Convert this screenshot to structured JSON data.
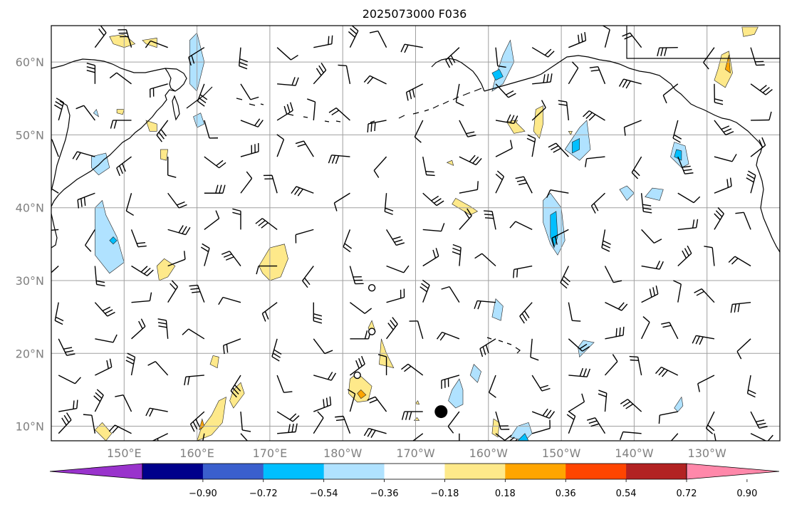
{
  "title": "2025073000 F036",
  "lat_ticks": [
    {
      "lat": 60,
      "label": "60°N"
    },
    {
      "lat": 50,
      "label": "50°N"
    },
    {
      "lat": 40,
      "label": "40°N"
    },
    {
      "lat": 30,
      "label": "30°N"
    },
    {
      "lat": 20,
      "label": "20°N"
    },
    {
      "lat": 10,
      "label": "10°N"
    }
  ],
  "lon_ticks": [
    {
      "lon": 150,
      "label": "150°E"
    },
    {
      "lon": 160,
      "label": "160°E"
    },
    {
      "lon": 170,
      "label": "170°E"
    },
    {
      "lon": 180,
      "label": "180°W"
    },
    {
      "lon": 190,
      "label": "170°W"
    },
    {
      "lon": 200,
      "label": "160°W"
    },
    {
      "lon": 210,
      "label": "150°W"
    },
    {
      "lon": 220,
      "label": "140°W"
    },
    {
      "lon": 230,
      "label": "130°W"
    }
  ],
  "colorbar": {
    "colors": [
      "#9933cc",
      "#00008b",
      "#3a5fcd",
      "#00bfff",
      "#b0e2ff",
      "#ffffff",
      "#fee98a",
      "#ffa500",
      "#ff4500",
      "#b22222",
      "#ff88aa"
    ],
    "tick_labels": [
      "−0.90",
      "−0.72",
      "−0.54",
      "−0.36",
      "−0.18",
      "0.18",
      "0.36",
      "0.54",
      "0.72",
      "0.90"
    ]
  },
  "marker": {
    "lon": 193.5,
    "lat": 12
  },
  "calm_points": [
    {
      "lon": 184,
      "lat": 29
    },
    {
      "lon": 184,
      "lat": 23
    },
    {
      "lon": 182,
      "lat": 17
    }
  ],
  "contour_regions": [
    {
      "color": "#b0e2ff",
      "points": [
        [
          159,
          57
        ],
        [
          159,
          63
        ],
        [
          160,
          64
        ],
        [
          161,
          60
        ],
        [
          160,
          56
        ]
      ]
    },
    {
      "color": "#b0e2ff",
      "points": [
        [
          159.5,
          52.5
        ],
        [
          160.5,
          53
        ],
        [
          161,
          51.5
        ],
        [
          160,
          51
        ]
      ]
    },
    {
      "color": "#b0e2ff",
      "points": [
        [
          145.5,
          47
        ],
        [
          147.5,
          47.5
        ],
        [
          148,
          45.5
        ],
        [
          146.5,
          44.5
        ],
        [
          145.5,
          45.5
        ]
      ]
    },
    {
      "color": "#b0e2ff",
      "points": [
        [
          146,
          40
        ],
        [
          146,
          33.5
        ],
        [
          148,
          31
        ],
        [
          150,
          32.5
        ],
        [
          149,
          36
        ],
        [
          147.5,
          39
        ],
        [
          147,
          41
        ]
      ]
    },
    {
      "color": "#00bfff",
      "points": [
        [
          148,
          35.5
        ],
        [
          148.5,
          35
        ],
        [
          149,
          35.5
        ],
        [
          148.5,
          36
        ]
      ]
    },
    {
      "color": "#b0e2ff",
      "points": [
        [
          201,
          58
        ],
        [
          202,
          61
        ],
        [
          203,
          63
        ],
        [
          203.5,
          60
        ],
        [
          202,
          57
        ],
        [
          200.5,
          56
        ]
      ]
    },
    {
      "color": "#00bfff",
      "points": [
        [
          200.5,
          58.5
        ],
        [
          201.5,
          59
        ],
        [
          202,
          58
        ],
        [
          201,
          57.5
        ]
      ]
    },
    {
      "color": "#b0e2ff",
      "points": [
        [
          210.5,
          48
        ],
        [
          212.5,
          46.5
        ],
        [
          214,
          48
        ],
        [
          213.5,
          52
        ],
        [
          212.5,
          51
        ]
      ]
    },
    {
      "color": "#00bfff",
      "points": [
        [
          211.5,
          47.5
        ],
        [
          212.5,
          48
        ],
        [
          212.5,
          49.5
        ],
        [
          211.5,
          49
        ]
      ]
    },
    {
      "color": "#b0e2ff",
      "points": [
        [
          207.5,
          41
        ],
        [
          208.5,
          42
        ],
        [
          210,
          40
        ],
        [
          210.5,
          35.5
        ],
        [
          209.5,
          33.5
        ],
        [
          208.5,
          35
        ],
        [
          207.5,
          38
        ]
      ]
    },
    {
      "color": "#00bfff",
      "points": [
        [
          208.5,
          39
        ],
        [
          209.3,
          39.5
        ],
        [
          209.5,
          36
        ],
        [
          209,
          34.5
        ],
        [
          208.5,
          36
        ]
      ]
    },
    {
      "color": "#b0e2ff",
      "points": [
        [
          225,
          47
        ],
        [
          226.5,
          45.5
        ],
        [
          227.5,
          46
        ],
        [
          227,
          48.5
        ],
        [
          225.5,
          49
        ]
      ]
    },
    {
      "color": "#00bfff",
      "points": [
        [
          225.5,
          47
        ],
        [
          226.5,
          46.5
        ],
        [
          226.5,
          47.8
        ],
        [
          225.8,
          48
        ]
      ]
    },
    {
      "color": "#b0e2ff",
      "points": [
        [
          200.5,
          25
        ],
        [
          201.7,
          24.5
        ],
        [
          202,
          26.5
        ],
        [
          201,
          27.5
        ]
      ]
    },
    {
      "color": "#b0e2ff",
      "points": [
        [
          212.5,
          19.5
        ],
        [
          213.5,
          20.5
        ],
        [
          214.5,
          21.5
        ],
        [
          213,
          21.8
        ],
        [
          212.3,
          20.8
        ]
      ]
    },
    {
      "color": "#b0e2ff",
      "points": [
        [
          195.5,
          12.5
        ],
        [
          196.5,
          13
        ],
        [
          196.5,
          15
        ],
        [
          196,
          16.5
        ],
        [
          195,
          15
        ],
        [
          194.5,
          13.5
        ]
      ]
    },
    {
      "color": "#b0e2ff",
      "points": [
        [
          197.5,
          17
        ],
        [
          198.5,
          16
        ],
        [
          199,
          17.5
        ],
        [
          198,
          18.5
        ]
      ]
    },
    {
      "color": "#b0e2ff",
      "points": [
        [
          203,
          8.5
        ],
        [
          204,
          10
        ],
        [
          205.5,
          10.5
        ],
        [
          206,
          9
        ],
        [
          205,
          8
        ]
      ]
    },
    {
      "color": "#00bfff",
      "points": [
        [
          204,
          8
        ],
        [
          205,
          9
        ],
        [
          205.5,
          8
        ]
      ]
    },
    {
      "color": "#b0e2ff",
      "points": [
        [
          225.5,
          12.5
        ],
        [
          226.5,
          14
        ],
        [
          226.7,
          12.8
        ],
        [
          226,
          12
        ]
      ]
    },
    {
      "color": "#b0e2ff",
      "points": [
        [
          218,
          42.5
        ],
        [
          219,
          41
        ],
        [
          220,
          42
        ],
        [
          219,
          43
        ]
      ]
    },
    {
      "color": "#b0e2ff",
      "points": [
        [
          221.5,
          41.5
        ],
        [
          223.5,
          41
        ],
        [
          224,
          42.5
        ],
        [
          222.5,
          42.7
        ]
      ]
    },
    {
      "color": "#b0e2ff",
      "points": [
        [
          145.8,
          53
        ],
        [
          146.5,
          52.5
        ],
        [
          146.2,
          53.5
        ]
      ]
    },
    {
      "color": "#fee98a",
      "points": [
        [
          148,
          63.5
        ],
        [
          150,
          63.8
        ],
        [
          151.5,
          62.5
        ],
        [
          150,
          62
        ],
        [
          148.5,
          62.5
        ]
      ]
    },
    {
      "color": "#fee98a",
      "points": [
        [
          152.5,
          63
        ],
        [
          154.5,
          63.3
        ],
        [
          154.5,
          62
        ],
        [
          153,
          62.5
        ]
      ]
    },
    {
      "color": "#fee98a",
      "points": [
        [
          153,
          52
        ],
        [
          154.5,
          51.5
        ],
        [
          154.5,
          50.5
        ],
        [
          153.5,
          50.5
        ]
      ]
    },
    {
      "color": "#fee98a",
      "points": [
        [
          155,
          48
        ],
        [
          156,
          48
        ],
        [
          155.8,
          46.5
        ],
        [
          155,
          46.7
        ]
      ]
    },
    {
      "color": "#fee98a",
      "points": [
        [
          149,
          53.5
        ],
        [
          150,
          53.5
        ],
        [
          149.8,
          52.8
        ],
        [
          149,
          53
        ]
      ]
    },
    {
      "color": "#fee98a",
      "points": [
        [
          154.5,
          32
        ],
        [
          155.5,
          33
        ],
        [
          157,
          32
        ],
        [
          156,
          30.5
        ],
        [
          154.8,
          30
        ]
      ]
    },
    {
      "color": "#fee98a",
      "points": [
        [
          168.5,
          32
        ],
        [
          170,
          34.5
        ],
        [
          172,
          35
        ],
        [
          172.5,
          33
        ],
        [
          171.5,
          30.5
        ],
        [
          170,
          30
        ],
        [
          169,
          31
        ]
      ]
    },
    {
      "color": "#fee98a",
      "points": [
        [
          231.5,
          59
        ],
        [
          232,
          61
        ],
        [
          233,
          61.5
        ],
        [
          233.5,
          58.5
        ],
        [
          232.5,
          56.5
        ],
        [
          231,
          57.5
        ]
      ]
    },
    {
      "color": "#ffa500",
      "points": [
        [
          232.5,
          59
        ],
        [
          233,
          61
        ],
        [
          233.2,
          58.5
        ]
      ]
    },
    {
      "color": "#fee98a",
      "points": [
        [
          235,
          63.5
        ],
        [
          236.5,
          63.8
        ],
        [
          237,
          64.8
        ],
        [
          234.8,
          64.8
        ]
      ]
    },
    {
      "color": "#fee98a",
      "points": [
        [
          206.5,
          53.5
        ],
        [
          207.5,
          54
        ],
        [
          207.5,
          51.5
        ],
        [
          207,
          49.5
        ],
        [
          206.2,
          50.5
        ]
      ]
    },
    {
      "color": "#fee98a",
      "points": [
        [
          202.5,
          51.8
        ],
        [
          203.5,
          52
        ],
        [
          205,
          50.5
        ],
        [
          203.5,
          50.2
        ]
      ]
    },
    {
      "color": "#fee98a",
      "points": [
        [
          211,
          50.5
        ],
        [
          211.5,
          50.5
        ],
        [
          211.3,
          50
        ]
      ]
    },
    {
      "color": "#fee98a",
      "points": [
        [
          203.5,
          52
        ],
        [
          204,
          52
        ],
        [
          203.8,
          51.7
        ]
      ]
    },
    {
      "color": "#fee98a",
      "points": [
        [
          194.3,
          46.2
        ],
        [
          195,
          46.5
        ],
        [
          195.2,
          45.8
        ]
      ]
    },
    {
      "color": "#fee98a",
      "points": [
        [
          195,
          40.5
        ],
        [
          195.5,
          41.3
        ],
        [
          197.5,
          40.2
        ],
        [
          198.5,
          39.5
        ],
        [
          197.5,
          39
        ]
      ]
    },
    {
      "color": "#fee98a",
      "points": [
        [
          183.5,
          23.5
        ],
        [
          184,
          24.5
        ],
        [
          184.5,
          23
        ],
        [
          184,
          22.5
        ]
      ]
    },
    {
      "color": "#fee98a",
      "points": [
        [
          185,
          18.5
        ],
        [
          185.3,
          22
        ],
        [
          186,
          20
        ],
        [
          187,
          18
        ]
      ]
    },
    {
      "color": "#fee98a",
      "points": [
        [
          161.8,
          18.5
        ],
        [
          162.8,
          18
        ],
        [
          163,
          19.5
        ],
        [
          162.2,
          19.7
        ]
      ]
    },
    {
      "color": "#fee98a",
      "points": [
        [
          164.5,
          13.5
        ],
        [
          165,
          12.5
        ],
        [
          166.5,
          14.5
        ],
        [
          166,
          16
        ],
        [
          165,
          15
        ]
      ]
    },
    {
      "color": "#fee98a",
      "points": [
        [
          160,
          8
        ],
        [
          162,
          8.8
        ],
        [
          163.5,
          10.5
        ],
        [
          164,
          14
        ],
        [
          163,
          13.5
        ],
        [
          162,
          11.5
        ],
        [
          160.5,
          9.5
        ]
      ]
    },
    {
      "color": "#ffa500",
      "points": [
        [
          160.3,
          9.5
        ],
        [
          161,
          10
        ],
        [
          160.7,
          11
        ]
      ]
    },
    {
      "color": "#fee98a",
      "points": [
        [
          146,
          9.5
        ],
        [
          147,
          10.5
        ],
        [
          148.3,
          9
        ],
        [
          147.5,
          8
        ]
      ]
    },
    {
      "color": "#fee98a",
      "points": [
        [
          181,
          16.5
        ],
        [
          182,
          17.3
        ],
        [
          184,
          15.5
        ],
        [
          183.5,
          13.5
        ],
        [
          182,
          13.3
        ],
        [
          180.8,
          14.5
        ]
      ]
    },
    {
      "color": "#ffa500",
      "points": [
        [
          182,
          14.5
        ],
        [
          182.5,
          15
        ],
        [
          183.2,
          14.3
        ],
        [
          182.5,
          13.8
        ]
      ]
    },
    {
      "color": "#fee98a",
      "points": [
        [
          190,
          13.1
        ],
        [
          190.3,
          13.5
        ],
        [
          190.5,
          13
        ]
      ]
    },
    {
      "color": "#fee98a",
      "points": [
        [
          189.8,
          10.8
        ],
        [
          190.2,
          11.2
        ],
        [
          190.5,
          10.8
        ]
      ]
    },
    {
      "color": "#fee98a",
      "points": [
        [
          200.5,
          9
        ],
        [
          200.7,
          11
        ],
        [
          201.5,
          10.5
        ],
        [
          201.3,
          8.5
        ]
      ]
    }
  ]
}
